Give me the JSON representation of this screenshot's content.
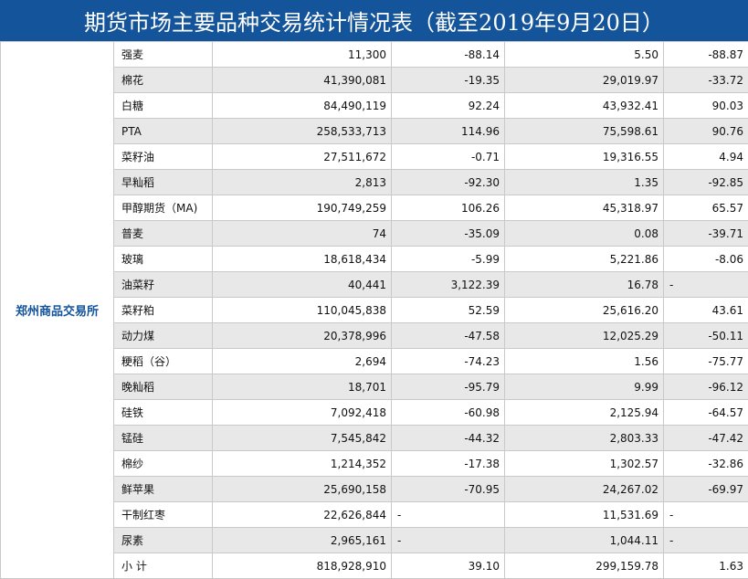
{
  "title": "期货市场主要品种交易统计情况表（截至2019年9月20日）",
  "exchange": "郑州商品交易所",
  "rows": [
    {
      "name": "强麦",
      "c1": "11,300",
      "c2": "-88.14",
      "c3": "5.50",
      "c4": "-88.87"
    },
    {
      "name": "棉花",
      "c1": "41,390,081",
      "c2": "-19.35",
      "c3": "29,019.97",
      "c4": "-33.72"
    },
    {
      "name": "白糖",
      "c1": "84,490,119",
      "c2": "92.24",
      "c3": "43,932.41",
      "c4": "90.03"
    },
    {
      "name": "PTA",
      "c1": "258,533,713",
      "c2": "114.96",
      "c3": "75,598.61",
      "c4": "90.76"
    },
    {
      "name": "菜籽油",
      "c1": "27,511,672",
      "c2": "-0.71",
      "c3": "19,316.55",
      "c4": "4.94"
    },
    {
      "name": "早籼稻",
      "c1": "2,813",
      "c2": "-92.30",
      "c3": "1.35",
      "c4": "-92.85"
    },
    {
      "name": "甲醇期货（MA)",
      "c1": "190,749,259",
      "c2": "106.26",
      "c3": "45,318.97",
      "c4": "65.57"
    },
    {
      "name": "普麦",
      "c1": "74",
      "c2": "-35.09",
      "c3": "0.08",
      "c4": "-39.71"
    },
    {
      "name": "玻璃",
      "c1": "18,618,434",
      "c2": "-5.99",
      "c3": "5,221.86",
      "c4": "-8.06"
    },
    {
      "name": "油菜籽",
      "c1": "40,441",
      "c2": "3,122.39",
      "c3": "16.78",
      "c4": "-"
    },
    {
      "name": "菜籽粕",
      "c1": "110,045,838",
      "c2": "52.59",
      "c3": "25,616.20",
      "c4": "43.61"
    },
    {
      "name": "动力煤",
      "c1": "20,378,996",
      "c2": "-47.58",
      "c3": "12,025.29",
      "c4": "-50.11"
    },
    {
      "name": "粳稻（谷）",
      "c1": "2,694",
      "c2": "-74.23",
      "c3": "1.56",
      "c4": "-75.77"
    },
    {
      "name": "晚籼稻",
      "c1": "18,701",
      "c2": "-95.79",
      "c3": "9.99",
      "c4": "-96.12"
    },
    {
      "name": "硅铁",
      "c1": "7,092,418",
      "c2": "-60.98",
      "c3": "2,125.94",
      "c4": "-64.57"
    },
    {
      "name": "锰硅",
      "c1": "7,545,842",
      "c2": "-44.32",
      "c3": "2,803.33",
      "c4": "-47.42"
    },
    {
      "name": "棉纱",
      "c1": "1,214,352",
      "c2": "-17.38",
      "c3": "1,302.57",
      "c4": "-32.86"
    },
    {
      "name": "鲜苹果",
      "c1": "25,690,158",
      "c2": "-70.95",
      "c3": "24,267.02",
      "c4": "-69.97"
    },
    {
      "name": "干制红枣",
      "c1": "22,626,844",
      "c2": "-",
      "c3": "11,531.69",
      "c4": "-"
    },
    {
      "name": "尿素",
      "c1": "2,965,161",
      "c2": "-",
      "c3": "1,044.11",
      "c4": "-"
    },
    {
      "name": "小 计",
      "c1": "818,928,910",
      "c2": "39.10",
      "c3": "299,159.78",
      "c4": "1.63"
    }
  ]
}
